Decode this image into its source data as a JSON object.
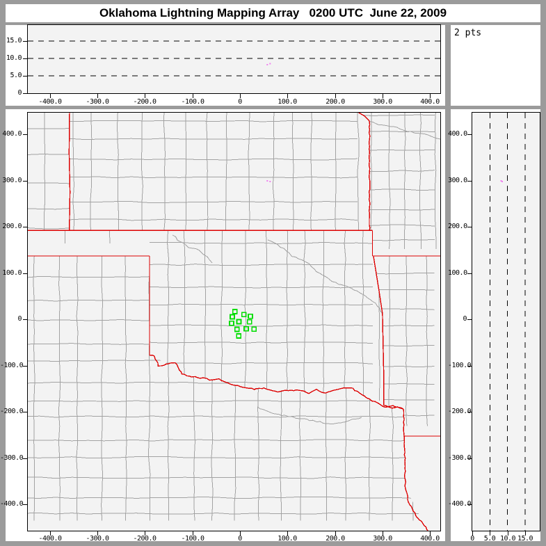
{
  "title": "Oklahoma Lightning Mapping Array   0200 UTC  June 22, 2009",
  "histogram_panel": {
    "points_label": "2 pts"
  },
  "colors": {
    "window_bg": "#9b9b9b",
    "panel_bg": "#ffffff",
    "plot_bg": "#f3f3f3",
    "axis": "#000000",
    "county_line": "#a2a2a2",
    "state_line": "#dd0000",
    "station": "#00dd00",
    "source_point": "#f080f0"
  },
  "axes": {
    "map_x": {
      "ticks": [
        {
          "v": -400,
          "label": "-400.0"
        },
        {
          "v": -300,
          "label": "-300.0"
        },
        {
          "v": -200,
          "label": "-200.0"
        },
        {
          "v": -100,
          "label": "-100.0"
        },
        {
          "v": 0,
          "label": "0"
        },
        {
          "v": 100,
          "label": "100.0"
        },
        {
          "v": 200,
          "label": "200.0"
        },
        {
          "v": 300,
          "label": "300.0"
        },
        {
          "v": 400,
          "label": "400.0"
        }
      ]
    },
    "map_y": {
      "ticks": [
        {
          "v": 400,
          "label": "400.0"
        },
        {
          "v": 300,
          "label": "300.0"
        },
        {
          "v": 200,
          "label": "200.0"
        },
        {
          "v": 100,
          "label": "100.0"
        },
        {
          "v": 0,
          "label": "0"
        },
        {
          "v": -100,
          "label": "-100.0"
        },
        {
          "v": -200,
          "label": "-200.0"
        },
        {
          "v": -300,
          "label": "-300.0"
        },
        {
          "v": -400,
          "label": "-400.0"
        }
      ]
    },
    "alt_top": {
      "ticks": [
        {
          "v": 15,
          "label": "15.0"
        },
        {
          "v": 10,
          "label": "10.0"
        },
        {
          "v": 5,
          "label": "5.0"
        },
        {
          "v": 0,
          "label": "0"
        }
      ]
    },
    "alt_right": {
      "ticks": [
        {
          "v": 0,
          "label": "0"
        },
        {
          "v": 5,
          "label": "5.0"
        },
        {
          "v": 10,
          "label": "10.0"
        },
        {
          "v": 15,
          "label": "15.0"
        }
      ]
    },
    "alt_gridlines": [
      5,
      10,
      15
    ]
  },
  "chart_data": {
    "type": "scatter",
    "title": "Oklahoma Lightning Mapping Array",
    "time_label": "0200 UTC",
    "date_label": "June 22, 2009",
    "point_count_label": "2 pts",
    "units": "km",
    "panels": [
      {
        "id": "alt_vs_ew",
        "x_range_km": [
          -446,
          421
        ],
        "y_range_km": [
          0,
          19.6
        ],
        "gridlines_alt_km": [
          5,
          10,
          15
        ]
      },
      {
        "id": "plan_view_map",
        "x_range_km": [
          -446,
          421
        ],
        "y_range_km": [
          -455,
          447
        ]
      },
      {
        "id": "alt_vs_ns",
        "x_range_km": [
          0,
          19.2
        ],
        "y_range_km": [
          -455,
          447
        ],
        "gridlines_alt_km": [
          5,
          10,
          15
        ]
      },
      {
        "id": "alt_histogram",
        "label": "2 pts"
      }
    ],
    "lightning_sources_km": [
      {
        "ew": 57.5,
        "ns": 299.2,
        "alt": 8.2
      },
      {
        "ew": 63.4,
        "ns": 297.7,
        "alt": 8.5
      }
    ],
    "lma_stations_km": [
      [
        -10.7,
        16.5
      ],
      [
        -16.1,
        5.3
      ],
      [
        8.3,
        10.1
      ],
      [
        22.0,
        6.3
      ],
      [
        -17.6,
        -8.7
      ],
      [
        -2.2,
        -5.3
      ],
      [
        20.2,
        -5.6
      ],
      [
        -6.3,
        -21.8
      ],
      [
        13.2,
        -20.6
      ],
      [
        29.7,
        -21.5
      ],
      [
        -2.5,
        -36.1
      ]
    ],
    "state_borders_km": [
      {
        "name": "co-ks",
        "wiggle": false,
        "pts": [
          [
            -358.7,
            450
          ],
          [
            -359.6,
            360
          ],
          [
            -357.8,
            275
          ],
          [
            -359.2,
            192
          ]
        ]
      },
      {
        "name": "ks-ok-37n",
        "wiggle": false,
        "pts": [
          [
            -450,
            192
          ],
          [
            278.9,
            192
          ]
        ]
      },
      {
        "name": "panhandle-tx-36.5n",
        "wiggle": false,
        "pts": [
          [
            -450,
            136.8
          ],
          [
            -190.3,
            136.8
          ]
        ]
      },
      {
        "name": "tx-ok-100w",
        "wiggle": false,
        "pts": [
          [
            -190.3,
            136.8
          ],
          [
            -190.3,
            -78.2
          ]
        ]
      },
      {
        "name": "ks-mo",
        "wiggle": true,
        "amp": 1.0,
        "pts": [
          [
            246,
            450
          ],
          [
            255,
            443
          ],
          [
            262,
            440
          ],
          [
            268,
            433
          ],
          [
            272.7,
            428
          ],
          [
            272.7,
            192
          ]
        ]
      },
      {
        "name": "ok-mo",
        "wiggle": false,
        "pts": [
          [
            278.9,
            192
          ],
          [
            278.9,
            136.8
          ]
        ]
      },
      {
        "name": "mo-ar",
        "wiggle": false,
        "pts": [
          [
            278.9,
            136.8
          ],
          [
            436,
            136.8
          ]
        ]
      },
      {
        "name": "ok-ar",
        "wiggle": false,
        "pts": [
          [
            281,
            136.8
          ],
          [
            293,
            60
          ],
          [
            300,
            12
          ],
          [
            301.5,
            -60
          ],
          [
            302.6,
            -120
          ],
          [
            302.6,
            -186.5
          ]
        ]
      },
      {
        "name": "red-river",
        "wiggle": true,
        "amp": 1.4,
        "pts": [
          [
            -190.3,
            -78.2
          ],
          [
            -180.1,
            -79.7
          ],
          [
            -171.3,
            -100.8
          ],
          [
            -150.8,
            -96.2
          ],
          [
            -136.2,
            -93.2
          ],
          [
            -121.5,
            -118.8
          ],
          [
            -112.7,
            -121.8
          ],
          [
            -83.5,
            -126.3
          ],
          [
            -63.0,
            -130.8
          ],
          [
            -43.9,
            -129.3
          ],
          [
            -29.3,
            -136.8
          ],
          [
            -14.6,
            -141.4
          ],
          [
            7.3,
            -145.9
          ],
          [
            29.3,
            -151.9
          ],
          [
            51.2,
            -148.9
          ],
          [
            73.2,
            -156.4
          ],
          [
            95.2,
            -154.9
          ],
          [
            124.5,
            -153.4
          ],
          [
            146.4,
            -159.4
          ],
          [
            161.1,
            -151.9
          ],
          [
            180.1,
            -159.4
          ],
          [
            205.0,
            -151.9
          ],
          [
            219.6,
            -147.4
          ],
          [
            237.2,
            -148.9
          ],
          [
            253.3,
            -160.9
          ],
          [
            278.2,
            -175.9
          ],
          [
            292.8,
            -183.5
          ],
          [
            307.5,
            -189.5
          ],
          [
            322.1,
            -188.0
          ],
          [
            332.4,
            -189.5
          ],
          [
            344.1,
            -194.0
          ]
        ]
      },
      {
        "name": "tx-ar-river",
        "wiggle": true,
        "amp": 1.2,
        "pts": [
          [
            302.6,
            -186.5
          ],
          [
            312,
            -189
          ],
          [
            320,
            -193
          ],
          [
            331,
            -190
          ],
          [
            344.1,
            -194
          ]
        ]
      },
      {
        "name": "ar-la-33n",
        "wiggle": false,
        "pts": [
          [
            344,
            -252.6
          ],
          [
            436,
            -252.6
          ]
        ]
      },
      {
        "name": "tx-la",
        "wiggle": true,
        "amp": 1.2,
        "pts": [
          [
            344.1,
            -194
          ],
          [
            345,
            -240
          ],
          [
            347,
            -300
          ],
          [
            348.4,
            -364
          ],
          [
            355,
            -395
          ],
          [
            368,
            -420
          ],
          [
            381,
            -437
          ],
          [
            390.9,
            -449.6
          ],
          [
            396,
            -458
          ]
        ]
      }
    ],
    "rivers_km": [
      {
        "name": "arkansas-river-ne-ok",
        "pts": [
          [
            58.6,
            171.4
          ],
          [
            80.5,
            160.9
          ],
          [
            98.1,
            148.9
          ],
          [
            109.8,
            136.8
          ],
          [
            124.5,
            130.8
          ],
          [
            146.4,
            118.8
          ],
          [
            161.1,
            103.8
          ],
          [
            180.1,
            91.7
          ],
          [
            194.7,
            81.2
          ]
        ]
      },
      {
        "name": "arkansas-river-se",
        "pts": [
          [
            194.7,
            81.2
          ],
          [
            226.9,
            70
          ],
          [
            258,
            55
          ],
          [
            285,
            35
          ],
          [
            300,
            12
          ]
        ]
      },
      {
        "name": "cimarron-river",
        "pts": [
          [
            -142,
            182
          ],
          [
            -124.5,
            166.9
          ],
          [
            -106.9,
            156.4
          ],
          [
            -87.8,
            148.9
          ],
          [
            -68.8,
            133.8
          ],
          [
            -58.6,
            121.8
          ]
        ]
      },
      {
        "name": "north-tx-river",
        "pts": [
          [
            36.6,
            -189.5
          ],
          [
            73.2,
            -204.5
          ],
          [
            109.8,
            -212.0
          ],
          [
            153.7,
            -219.6
          ],
          [
            197.7,
            -227.1
          ],
          [
            256.2,
            -212.0
          ]
        ]
      },
      {
        "name": "missouri-river",
        "pts": [
          [
            272,
            428
          ],
          [
            300,
            420
          ],
          [
            330,
            414
          ],
          [
            360,
            405
          ],
          [
            395,
            398
          ],
          [
            425,
            388
          ],
          [
            436,
            385
          ]
        ]
      }
    ],
    "county_regions": [
      {
        "name": "colorado",
        "seed": 11,
        "col": 60,
        "row": 52,
        "poly": [
          [
            -450,
            452
          ],
          [
            -358.7,
            452
          ],
          [
            -358.7,
            192
          ],
          [
            -450,
            192
          ]
        ]
      },
      {
        "name": "kansas",
        "seed": 7,
        "col": 45,
        "row": 42,
        "poly": [
          [
            -358.7,
            452
          ],
          [
            246,
            452
          ],
          [
            272.7,
            428
          ],
          [
            272.7,
            192
          ],
          [
            -358.7,
            192
          ]
        ]
      },
      {
        "name": "missouri",
        "seed": 13,
        "col": 40,
        "row": 37,
        "poly": [
          [
            246,
            452
          ],
          [
            436,
            452
          ],
          [
            436,
            136.8
          ],
          [
            278.9,
            136.8
          ],
          [
            278.9,
            192
          ],
          [
            272.7,
            192
          ],
          [
            272.7,
            428
          ]
        ]
      },
      {
        "name": "ok-panhandle",
        "seed": 5,
        "cols": [
          -369,
          -274
        ],
        "rows": [],
        "poly": [
          [
            -450,
            192
          ],
          [
            -190.3,
            192
          ],
          [
            -190.3,
            136.8
          ],
          [
            -450,
            136.8
          ]
        ]
      },
      {
        "name": "oklahoma",
        "seed": 3,
        "col": 43,
        "row": 40,
        "poly": [
          [
            -190.3,
            192
          ],
          [
            278.9,
            192
          ],
          [
            281,
            136.8
          ],
          [
            300,
            12
          ],
          [
            302.6,
            -186.5
          ],
          [
            278.2,
            -175.9
          ],
          [
            253.3,
            -160.9
          ],
          [
            219.6,
            -147.4
          ],
          [
            180.1,
            -159.4
          ],
          [
            146.4,
            -159.4
          ],
          [
            95.2,
            -154.9
          ],
          [
            51.2,
            -148.9
          ],
          [
            7.3,
            -145.9
          ],
          [
            -29.3,
            -136.8
          ],
          [
            -63.0,
            -130.8
          ],
          [
            -112.7,
            -121.8
          ],
          [
            -150.8,
            -96.2
          ],
          [
            -190.3,
            -78.2
          ]
        ]
      },
      {
        "name": "texas",
        "seed": 9,
        "col": 44,
        "row": 42,
        "poly": [
          [
            -450,
            136.8
          ],
          [
            -190.3,
            136.8
          ],
          [
            -190.3,
            -78.2
          ],
          [
            -150.8,
            -96.2
          ],
          [
            -112.7,
            -121.8
          ],
          [
            -63.0,
            -130.8
          ],
          [
            -29.3,
            -136.8
          ],
          [
            7.3,
            -145.9
          ],
          [
            51.2,
            -148.9
          ],
          [
            95.2,
            -154.9
          ],
          [
            146.4,
            -159.4
          ],
          [
            180.1,
            -159.4
          ],
          [
            219.6,
            -147.4
          ],
          [
            253.3,
            -160.9
          ],
          [
            278.2,
            -175.9
          ],
          [
            302.6,
            -186.5
          ],
          [
            344.1,
            -194
          ],
          [
            348.4,
            -364
          ],
          [
            390.9,
            -449.6
          ],
          [
            -450,
            -455
          ]
        ]
      },
      {
        "name": "arkansas",
        "seed": 17,
        "col": 41,
        "row": 39,
        "poly": [
          [
            278.9,
            136.8
          ],
          [
            436,
            136.8
          ],
          [
            436,
            -252.6
          ],
          [
            344,
            -252.6
          ],
          [
            344.1,
            -194
          ],
          [
            302.6,
            -186.5
          ],
          [
            300,
            12
          ],
          [
            281,
            136.8
          ]
        ]
      }
    ]
  }
}
